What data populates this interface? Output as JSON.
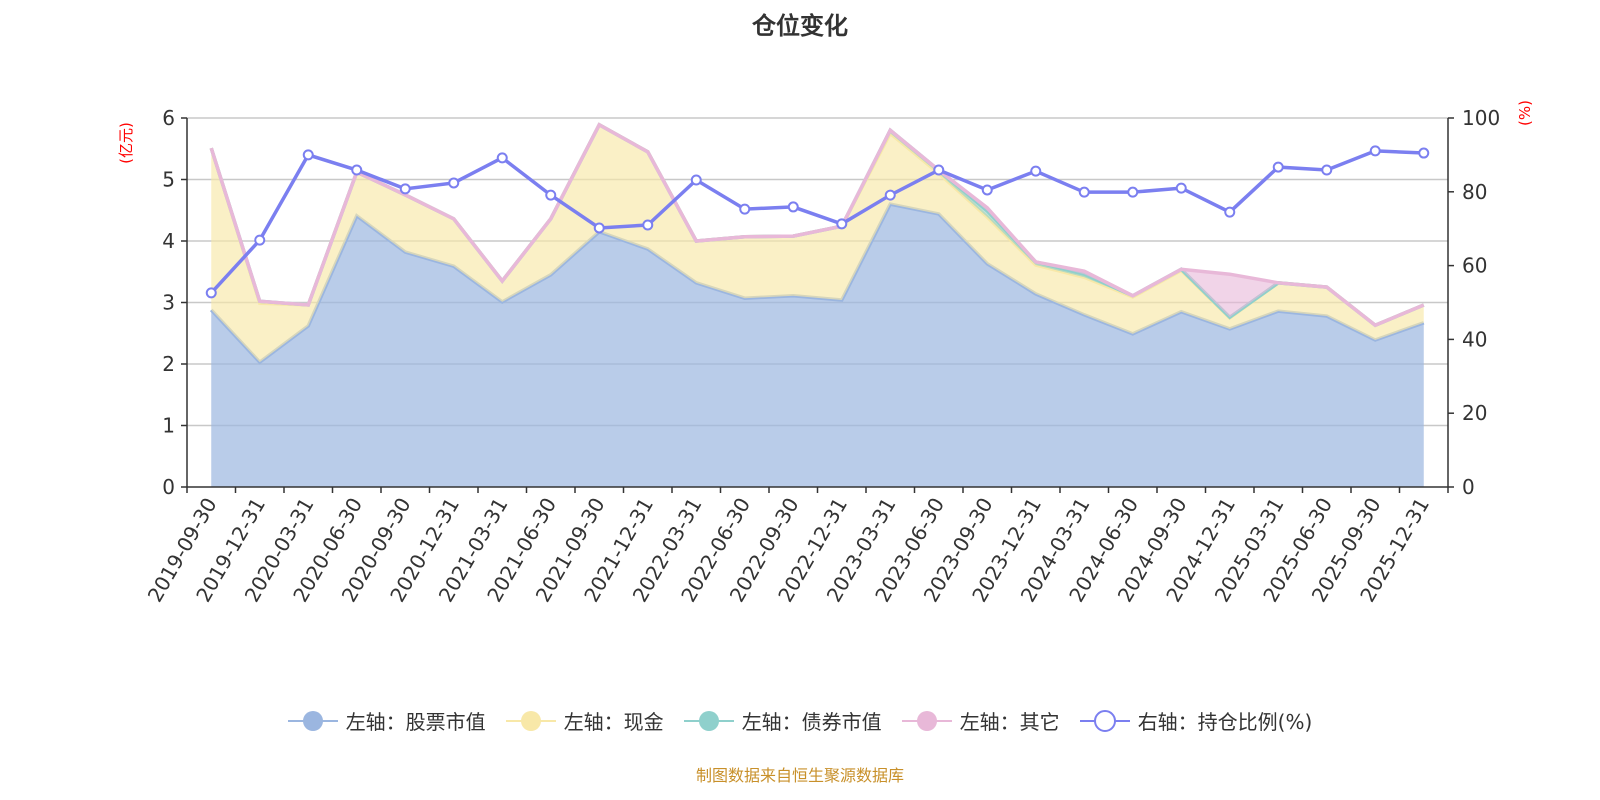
{
  "chart_data": {
    "type": "area",
    "title": "仓位变化",
    "left_axis_unit": "(亿元)",
    "right_axis_unit": "(%)",
    "ylim_left": [
      0,
      6
    ],
    "ylim_right": [
      0,
      100
    ],
    "left_ticks": [
      "0",
      "1",
      "2",
      "3",
      "4",
      "5",
      "6"
    ],
    "right_ticks": [
      "0",
      "20",
      "40",
      "60",
      "80",
      "100"
    ],
    "grid": true,
    "legend_position": "bottom",
    "categories": [
      "2019-09-30",
      "2019-12-31",
      "2020-03-31",
      "2020-06-30",
      "2020-09-30",
      "2020-12-31",
      "2021-03-31",
      "2021-06-30",
      "2021-09-30",
      "2021-12-31",
      "2022-03-31",
      "2022-06-30",
      "2022-09-30",
      "2022-12-31",
      "2023-03-31",
      "2023-06-30",
      "2023-09-30",
      "2023-12-31",
      "2024-03-31",
      "2024-06-30",
      "2024-09-30",
      "2024-12-31",
      "2025-03-31",
      "2025-06-30",
      "2025-09-30",
      "2025-12-31"
    ],
    "series": [
      {
        "name": "左轴：股票市值",
        "axis": "left",
        "stacked": true,
        "color": "#9bb6e0",
        "values": [
          2.88,
          2.03,
          2.62,
          4.41,
          3.82,
          3.59,
          3.01,
          3.45,
          4.15,
          3.87,
          3.32,
          3.07,
          3.11,
          3.04,
          4.6,
          4.44,
          3.63,
          3.14,
          2.8,
          2.49,
          2.85,
          2.57,
          2.86,
          2.78,
          2.39,
          2.67
        ]
      },
      {
        "name": "左轴：现金",
        "axis": "left",
        "stacked": true,
        "color": "#f8e8a8",
        "values": [
          2.63,
          0.96,
          0.34,
          0.71,
          0.93,
          0.77,
          0.34,
          0.91,
          1.74,
          1.58,
          0.68,
          1.0,
          0.97,
          1.2,
          1.15,
          0.66,
          0.76,
          0.47,
          0.61,
          0.6,
          0.67,
          0.18,
          0.46,
          0.47,
          0.24,
          0.29
        ]
      },
      {
        "name": "左轴：债券市值",
        "axis": "left",
        "stacked": true,
        "color": "#8fd0cc",
        "values": [
          0,
          0.03,
          0,
          0,
          0,
          0,
          0,
          0,
          0,
          0,
          0,
          0,
          0,
          0,
          0.05,
          0.05,
          0.1,
          0.05,
          0.05,
          0.02,
          0.02,
          0.01,
          0,
          0,
          0,
          0
        ]
      },
      {
        "name": "左轴：其它",
        "axis": "left",
        "stacked": true,
        "color": "#e8b8d8",
        "values": [
          0,
          0,
          0,
          0,
          0,
          0,
          0,
          0,
          0,
          0,
          0,
          0,
          0,
          0,
          0,
          0,
          0.05,
          0,
          0.05,
          0,
          0,
          0.7,
          0,
          0,
          0,
          0
        ]
      },
      {
        "name": "右轴：持仓比例(%)",
        "axis": "right",
        "stacked": false,
        "color": "#7b7ff0",
        "values": [
          52.6,
          66.9,
          90.0,
          85.9,
          80.8,
          82.4,
          89.2,
          79.1,
          70.2,
          71.0,
          83.2,
          75.3,
          75.9,
          71.3,
          79.1,
          85.9,
          80.5,
          85.6,
          79.9,
          79.9,
          81.0,
          74.5,
          86.7,
          85.9,
          91.1,
          90.5
        ]
      }
    ]
  },
  "source": "制图数据来自恒生聚源数据库"
}
